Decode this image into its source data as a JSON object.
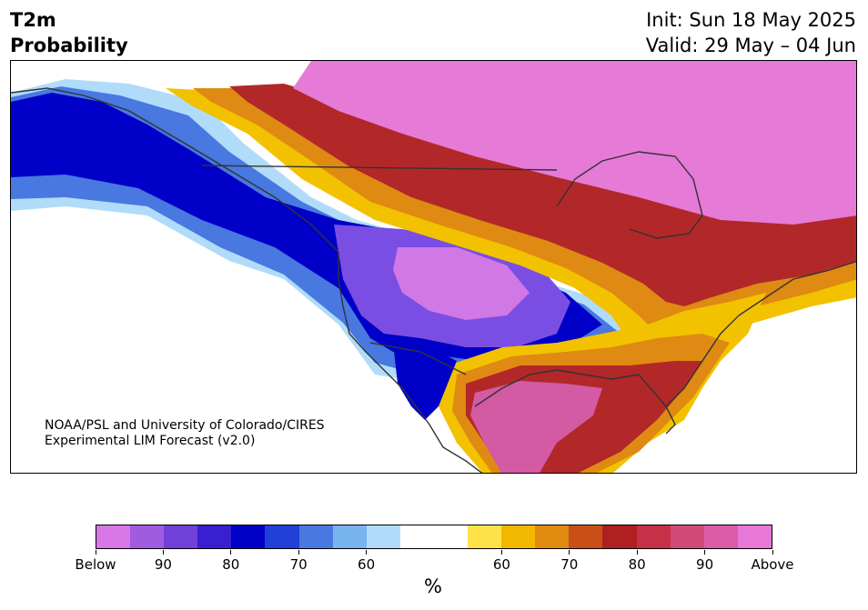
{
  "header": {
    "variable": "T2m",
    "product": "Probability",
    "init": "Init: Sun 18 May 2025",
    "valid": "Valid: 29 May – 04 Jun"
  },
  "credit": {
    "line1": "NOAA/PSL and University of Colorado/CIRES",
    "line2": "Experimental LIM Forecast (v2.0)"
  },
  "colorbar": {
    "units": "%",
    "below_colors": [
      "#d977e8",
      "#a05ce0",
      "#7040d8",
      "#3a1fd0",
      "#0000c8",
      "#2040d8",
      "#4878e0",
      "#78b4f0",
      "#b0dcfa"
    ],
    "above_colors": [
      "#ffe24a",
      "#f2b800",
      "#e08a10",
      "#c85018",
      "#b02020",
      "#c83048",
      "#d24a78",
      "#dc5ca8",
      "#e878d8"
    ],
    "labels": [
      "Below",
      "90",
      "80",
      "70",
      "60",
      "60",
      "70",
      "80",
      "90",
      "Above"
    ]
  },
  "map": {
    "color_ramp": {
      "pink_above": "#e67ad7",
      "magenta": "#d35aa3",
      "red": "#b22828",
      "orange": "#df8a12",
      "yellow": "#f2c200",
      "blue": "#0000c8",
      "purple": "#7a4ee2",
      "light_purple": "#d078e6"
    }
  }
}
